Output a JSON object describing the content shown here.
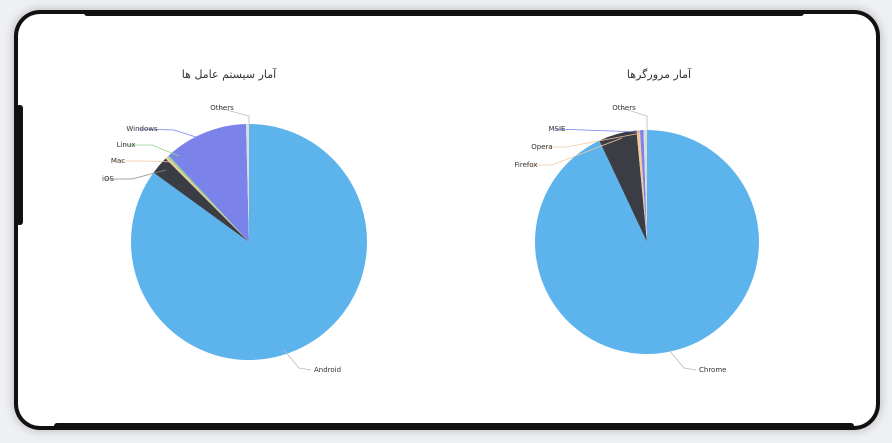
{
  "colors": {
    "blue": "#5db4ec",
    "dark": "#3b3d44",
    "purple": "#7b82ea",
    "beige": "#f2c9a0",
    "green": "#8fd48b",
    "light": "#dcdcdc"
  },
  "chart_data": [
    {
      "type": "pie",
      "title": "آمار سیستم عامل ها",
      "labels": [
        "Android",
        "iOS",
        "Mac",
        "Linux",
        "Windows",
        "Others"
      ],
      "values": [
        85.0,
        2.5,
        0.3,
        0.3,
        11.5,
        0.4
      ],
      "colors": [
        "#5db4ec",
        "#3b3d44",
        "#f2c9a0",
        "#8fd48b",
        "#7b82ea",
        "#dcdcdc"
      ]
    },
    {
      "type": "pie",
      "title": "آمار مرورگرها",
      "labels": [
        "Chrome",
        "Firefox",
        "Opera",
        "MSIE",
        "Others"
      ],
      "values": [
        93.0,
        5.5,
        0.5,
        0.5,
        0.5
      ],
      "colors": [
        "#5db4ec",
        "#3b3d44",
        "#f2c9a0",
        "#7b82ea",
        "#dcdcdc"
      ]
    }
  ]
}
